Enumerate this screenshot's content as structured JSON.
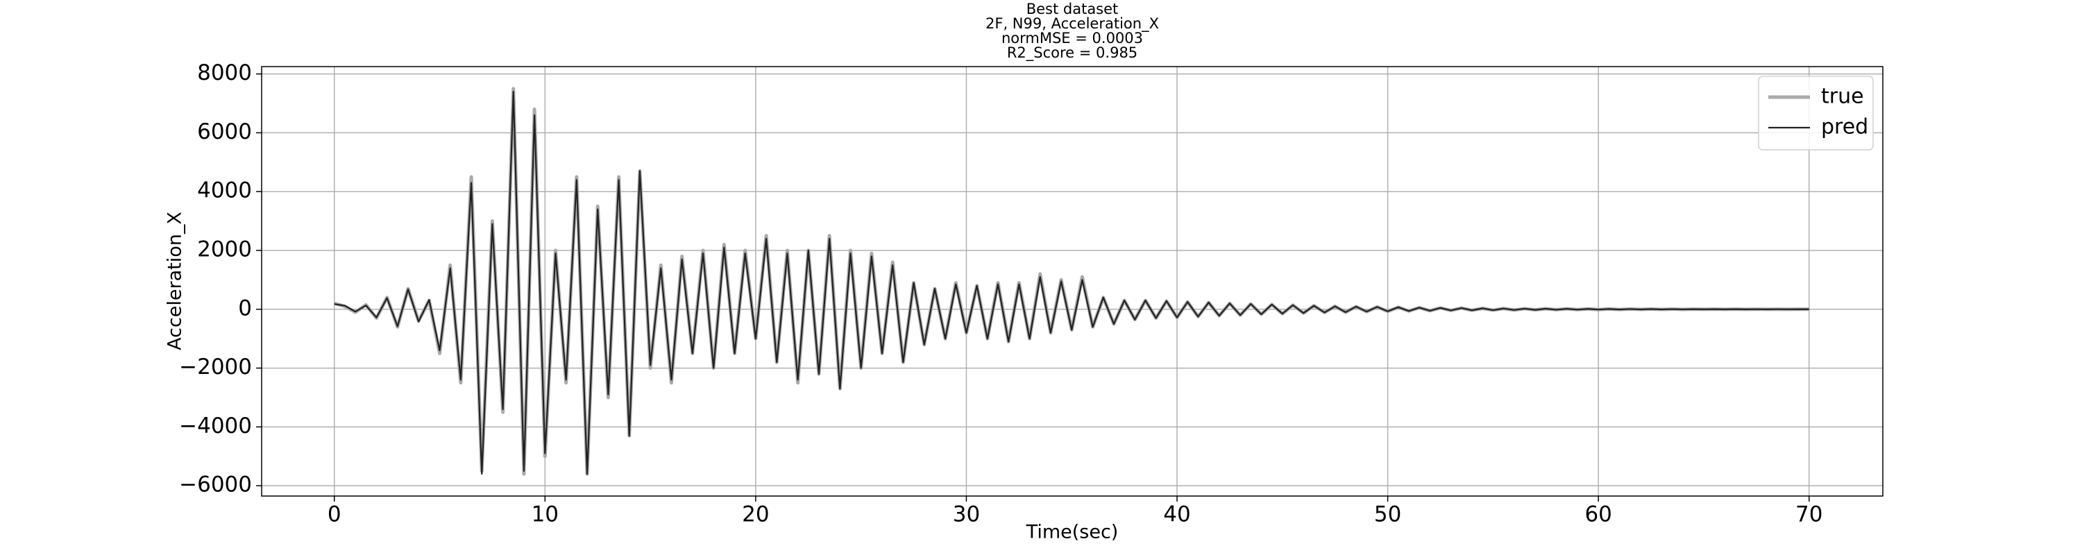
{
  "chart_data": {
    "type": "line",
    "title": [
      "Best dataset",
      "2F, N99, Acceleration_X",
      "normMSE = 0.0003",
      "R2_Score = 0.985"
    ],
    "x_label": "Time(sec)",
    "y_label": "Acceleration_X",
    "x": [
      0,
      0.5,
      1,
      1.5,
      2,
      2.5,
      3,
      3.5,
      4,
      4.5,
      5,
      5.5,
      6,
      6.5,
      7,
      7.5,
      8,
      8.5,
      9,
      9.5,
      10,
      10.5,
      11,
      11.5,
      12,
      12.5,
      13,
      13.5,
      14,
      14.5,
      15,
      15.5,
      16,
      16.5,
      17,
      17.5,
      18,
      18.5,
      19,
      19.5,
      20,
      20.5,
      21,
      21.5,
      22,
      22.5,
      23,
      23.5,
      24,
      24.5,
      25,
      25.5,
      26,
      26.5,
      27,
      27.5,
      28,
      28.5,
      29,
      29.5,
      30,
      30.5,
      31,
      31.5,
      32,
      32.5,
      33,
      33.5,
      34,
      34.5,
      35,
      35.5,
      36,
      36.5,
      37,
      37.5,
      38,
      38.5,
      39,
      39.5,
      40,
      40.5,
      41,
      41.5,
      42,
      42.5,
      43,
      43.5,
      44,
      44.5,
      45,
      45.5,
      46,
      46.5,
      47,
      47.5,
      48,
      48.5,
      49,
      49.5,
      50,
      50.5,
      51,
      51.5,
      52,
      52.5,
      53,
      53.5,
      54,
      54.5,
      55,
      55.5,
      56,
      56.5,
      57,
      57.5,
      58,
      58.5,
      59,
      59.5,
      60,
      60.5,
      61,
      61.5,
      62,
      62.5,
      63,
      63.5,
      64,
      64.5,
      65,
      65.5,
      66,
      66.5,
      67,
      67.5,
      68,
      68.5,
      69,
      69.5,
      70
    ],
    "series": [
      {
        "name": "true",
        "color": "#aaaaaa",
        "width": 5,
        "values": [
          200,
          100,
          -100,
          150,
          -300,
          400,
          -600,
          700,
          -400,
          300,
          -1500,
          1500,
          -2500,
          4500,
          -5500,
          3000,
          -3500,
          7500,
          -5600,
          6800,
          -5000,
          2000,
          -2500,
          4500,
          -5600,
          3500,
          -3000,
          4500,
          -4300,
          4700,
          -2000,
          1500,
          -2500,
          1800,
          -1500,
          2000,
          -2000,
          2200,
          -1500,
          2000,
          -1000,
          2500,
          -1800,
          2000,
          -2500,
          2000,
          -2200,
          2500,
          -2700,
          2000,
          -2000,
          1900,
          -1500,
          1600,
          -1800,
          900,
          -1200,
          700,
          -1000,
          900,
          -800,
          800,
          -1000,
          900,
          -1100,
          900,
          -1000,
          1200,
          -800,
          1000,
          -700,
          1100,
          -600,
          400,
          -500,
          300,
          -350,
          300,
          -300,
          280,
          -280,
          250,
          -250,
          230,
          -220,
          200,
          -200,
          180,
          -170,
          160,
          -150,
          140,
          -130,
          120,
          -110,
          100,
          -100,
          90,
          -80,
          80,
          -70,
          70,
          -60,
          55,
          -50,
          45,
          -40,
          40,
          -35,
          30,
          -30,
          25,
          -25,
          20,
          -20,
          18,
          -15,
          15,
          -12,
          12,
          -10,
          10,
          -8,
          8,
          -6,
          6,
          -5,
          5,
          -4,
          4,
          -3,
          3,
          -3,
          3,
          -2,
          2,
          -2,
          2,
          -1,
          1,
          0
        ]
      },
      {
        "name": "pred",
        "color": "#222222",
        "width": 2.2,
        "values": [
          180,
          120,
          -80,
          130,
          -280,
          380,
          -580,
          680,
          -420,
          320,
          -1400,
          1400,
          -2400,
          4300,
          -5600,
          2900,
          -3400,
          7400,
          -5500,
          6600,
          -4900,
          1900,
          -2400,
          4400,
          -5600,
          3400,
          -2900,
          4400,
          -4300,
          4700,
          -1900,
          1400,
          -2400,
          1700,
          -1500,
          1900,
          -2000,
          2100,
          -1500,
          1900,
          -1000,
          2400,
          -1800,
          1900,
          -2400,
          2000,
          -2200,
          2400,
          -2700,
          1900,
          -2000,
          1800,
          -1500,
          1500,
          -1800,
          900,
          -1200,
          700,
          -1000,
          850,
          -800,
          800,
          -1000,
          850,
          -1100,
          850,
          -1000,
          1100,
          -800,
          950,
          -700,
          1000,
          -600,
          400,
          -500,
          300,
          -350,
          300,
          -300,
          280,
          -280,
          250,
          -250,
          230,
          -220,
          200,
          -200,
          180,
          -170,
          160,
          -150,
          140,
          -130,
          120,
          -110,
          100,
          -100,
          90,
          -80,
          80,
          -70,
          70,
          -60,
          55,
          -50,
          45,
          -40,
          40,
          -35,
          30,
          -30,
          25,
          -25,
          20,
          -20,
          18,
          -15,
          15,
          -12,
          12,
          -10,
          10,
          -8,
          8,
          -6,
          6,
          -5,
          5,
          -4,
          4,
          -3,
          3,
          -3,
          3,
          -2,
          2,
          -2,
          2,
          -1,
          1,
          0
        ]
      }
    ],
    "xlim": [
      -3.45,
      73.5
    ],
    "ylim": [
      -6350,
      8250
    ],
    "xticks": [
      0,
      10,
      20,
      30,
      40,
      50,
      60,
      70
    ],
    "yticks": [
      {
        "value": -6000,
        "label": "−6000"
      },
      {
        "value": -4000,
        "label": "−4000"
      },
      {
        "value": -2000,
        "label": "−2000"
      },
      0,
      2000,
      4000,
      6000,
      8000
    ],
    "grid": true,
    "legend": "upper right"
  }
}
